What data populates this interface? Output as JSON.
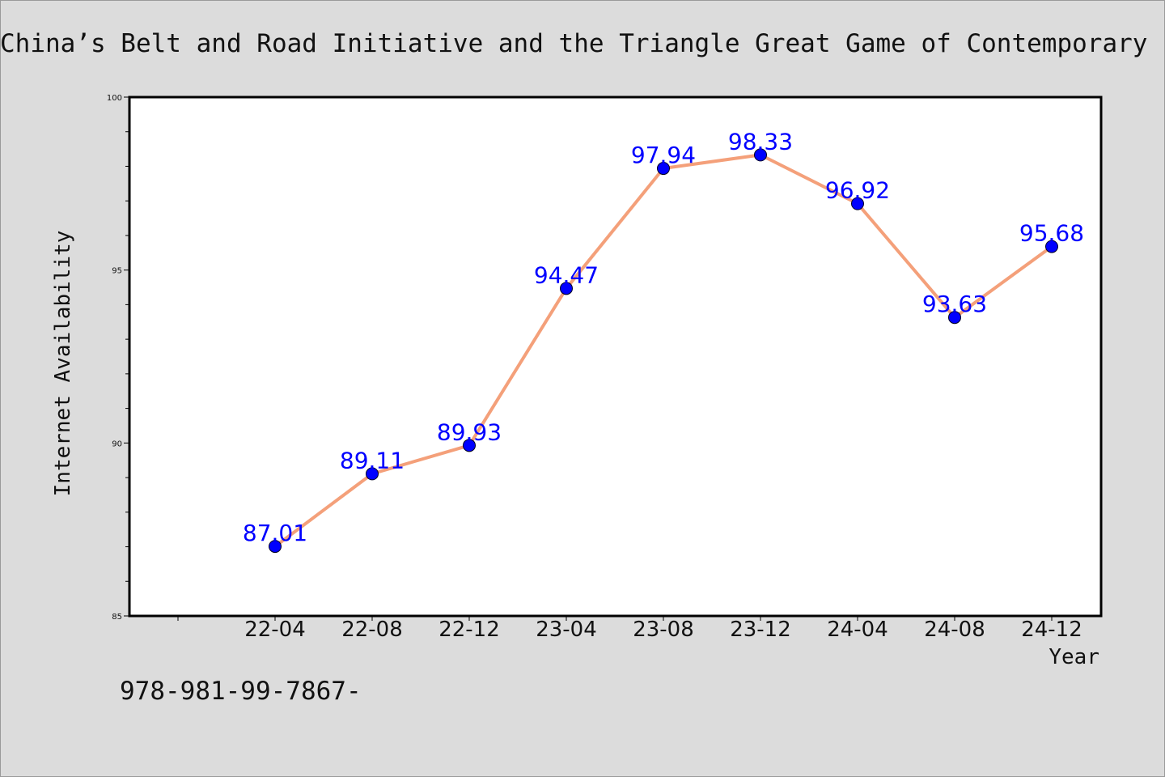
{
  "chart_data": {
    "type": "line",
    "title": "China’s Belt and Road Initiative and the Triangle Great Game of Contemporary International Politics",
    "xlabel": "Year",
    "ylabel": "Internet Availability",
    "categories": [
      "22-04",
      "22-08",
      "22-12",
      "23-04",
      "23-08",
      "23-12",
      "24-04",
      "24-08",
      "24-12"
    ],
    "series": [
      {
        "values": [
          87.01,
          89.11,
          89.93,
          94.47,
          97.94,
          98.33,
          96.92,
          93.63,
          95.68
        ]
      }
    ],
    "ylim": [
      85,
      100
    ],
    "yticks": [
      85,
      90,
      95,
      100
    ],
    "grid": false,
    "line_color": "#f4a07a",
    "marker_color": "#0000ff",
    "label_color": "#0000ff"
  },
  "footer_text": "978-981-99-7867-"
}
